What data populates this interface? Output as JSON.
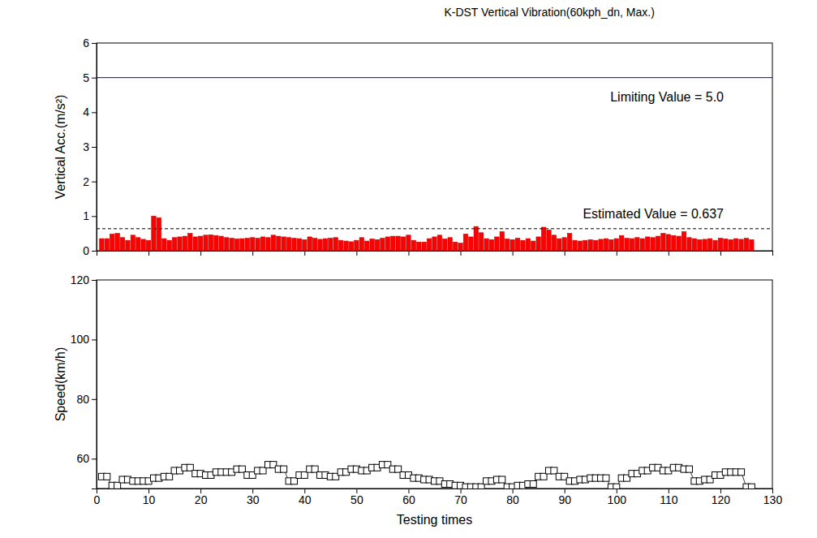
{
  "chart_data": [
    {
      "type": "bar",
      "title": "K-DST Vertical Vibration(60kph_dn, Max.)",
      "ylabel": "Vertical Acc.(m/s²)",
      "x": [
        1,
        2,
        3,
        4,
        5,
        6,
        7,
        8,
        9,
        10,
        11,
        12,
        13,
        14,
        15,
        16,
        17,
        18,
        19,
        20,
        21,
        22,
        23,
        24,
        25,
        26,
        27,
        28,
        29,
        30,
        31,
        32,
        33,
        34,
        35,
        36,
        37,
        38,
        39,
        40,
        41,
        42,
        43,
        44,
        45,
        46,
        47,
        48,
        49,
        50,
        51,
        52,
        53,
        54,
        55,
        56,
        57,
        58,
        59,
        60,
        61,
        62,
        63,
        64,
        65,
        66,
        67,
        68,
        69,
        70,
        71,
        72,
        73,
        74,
        75,
        76,
        77,
        78,
        79,
        80,
        81,
        82,
        83,
        84,
        85,
        86,
        87,
        88,
        89,
        90,
        91,
        92,
        93,
        94,
        95,
        96,
        97,
        98,
        99,
        100,
        101,
        102,
        103,
        104,
        105,
        106,
        107,
        108,
        109,
        110,
        111,
        112,
        113,
        114,
        115,
        116,
        117,
        118,
        119,
        120,
        121,
        122,
        123,
        124,
        125,
        126
      ],
      "values": [
        0.35,
        0.35,
        0.48,
        0.5,
        0.38,
        0.3,
        0.45,
        0.38,
        0.33,
        0.3,
        1.0,
        0.95,
        0.35,
        0.3,
        0.38,
        0.4,
        0.42,
        0.5,
        0.4,
        0.42,
        0.45,
        0.46,
        0.44,
        0.42,
        0.38,
        0.36,
        0.34,
        0.35,
        0.36,
        0.38,
        0.36,
        0.4,
        0.38,
        0.45,
        0.42,
        0.4,
        0.38,
        0.36,
        0.35,
        0.32,
        0.4,
        0.36,
        0.33,
        0.35,
        0.36,
        0.38,
        0.3,
        0.28,
        0.26,
        0.3,
        0.38,
        0.28,
        0.34,
        0.32,
        0.36,
        0.4,
        0.42,
        0.42,
        0.4,
        0.45,
        0.3,
        0.25,
        0.25,
        0.35,
        0.4,
        0.45,
        0.34,
        0.38,
        0.25,
        0.22,
        0.48,
        0.4,
        0.7,
        0.52,
        0.35,
        0.32,
        0.4,
        0.55,
        0.34,
        0.32,
        0.36,
        0.3,
        0.35,
        0.28,
        0.4,
        0.68,
        0.6,
        0.45,
        0.35,
        0.38,
        0.5,
        0.3,
        0.28,
        0.3,
        0.32,
        0.3,
        0.33,
        0.35,
        0.32,
        0.35,
        0.44,
        0.36,
        0.35,
        0.38,
        0.35,
        0.4,
        0.38,
        0.42,
        0.5,
        0.47,
        0.44,
        0.42,
        0.55,
        0.38,
        0.35,
        0.32,
        0.33,
        0.35,
        0.3,
        0.36,
        0.34,
        0.32,
        0.35,
        0.33,
        0.36,
        0.32
      ],
      "color": "#ff0000",
      "xlim": [
        0,
        130
      ],
      "xticks": [
        0,
        10,
        20,
        30,
        40,
        50,
        60,
        70,
        80,
        90,
        100,
        110,
        120,
        130
      ],
      "ylim": [
        0,
        6
      ],
      "yticks": [
        0,
        1,
        2,
        3,
        4,
        5,
        6
      ],
      "tick_labels": "y",
      "reference_lines": [
        {
          "value": 5.0,
          "label": "Limiting Value = 5.0",
          "color": "#0000cc",
          "line_style": "solid"
        },
        {
          "value": 0.637,
          "label": "Estimated Value = 0.637",
          "color": "#000000",
          "line_style": "dashed"
        }
      ]
    },
    {
      "type": "line",
      "xlabel": "Testing times",
      "ylabel": "Speed(km/h)",
      "x": [
        1,
        2,
        3,
        4,
        5,
        6,
        7,
        8,
        9,
        10,
        11,
        12,
        13,
        14,
        15,
        16,
        17,
        18,
        19,
        20,
        21,
        22,
        23,
        24,
        25,
        26,
        27,
        28,
        29,
        30,
        31,
        32,
        33,
        34,
        35,
        36,
        37,
        38,
        39,
        40,
        41,
        42,
        43,
        44,
        45,
        46,
        47,
        48,
        49,
        50,
        51,
        52,
        53,
        54,
        55,
        56,
        57,
        58,
        59,
        60,
        61,
        62,
        63,
        64,
        65,
        66,
        67,
        68,
        69,
        70,
        71,
        72,
        73,
        74,
        75,
        76,
        77,
        78,
        79,
        80,
        81,
        82,
        83,
        84,
        85,
        86,
        87,
        88,
        89,
        90,
        91,
        92,
        93,
        94,
        95,
        96,
        97,
        98,
        99,
        100,
        101,
        102,
        103,
        104,
        105,
        106,
        107,
        108,
        109,
        110,
        111,
        112,
        113,
        114,
        115,
        116,
        117,
        118,
        119,
        120,
        121,
        122,
        123,
        124,
        125,
        126
      ],
      "values": [
        54,
        54,
        51,
        51,
        53,
        53,
        52.5,
        52.5,
        52.5,
        52.5,
        53.5,
        53.5,
        54,
        54,
        56,
        56,
        57,
        57,
        55,
        55,
        54.5,
        54.5,
        55.5,
        55.5,
        55.5,
        55.5,
        56.5,
        56.5,
        54.5,
        54.5,
        56,
        56,
        58,
        58,
        56.5,
        56.5,
        52.5,
        52.5,
        54.5,
        54.5,
        56.5,
        56.5,
        54.5,
        54.5,
        54,
        54,
        55.5,
        55.5,
        56.5,
        56.5,
        56,
        56,
        57,
        57,
        58,
        58,
        56.5,
        56.5,
        54.5,
        54.5,
        53.5,
        53.5,
        53,
        53,
        52.5,
        52.5,
        51.5,
        51.5,
        51,
        51,
        50.5,
        50.5,
        50.5,
        50.5,
        52.5,
        52.5,
        53,
        53,
        50.5,
        50.5,
        51,
        51,
        51.5,
        51.5,
        54,
        54,
        56,
        56,
        54,
        54,
        52.5,
        52.5,
        53,
        53,
        53.5,
        53.5,
        53.5,
        53.5,
        50.5,
        50.5,
        53.5,
        53.5,
        55,
        55,
        56,
        56,
        57,
        57,
        56,
        56,
        57,
        57,
        56.5,
        56.5,
        52.5,
        52.5,
        53,
        53,
        54.5,
        54.5,
        55.5,
        55.5,
        55.5,
        55.5,
        50.5,
        50.5
      ],
      "color": "#000000",
      "marker": "square",
      "line_style": "solid",
      "xlim": [
        0,
        130
      ],
      "xticks": [
        0,
        10,
        20,
        30,
        40,
        50,
        60,
        70,
        80,
        90,
        100,
        110,
        120,
        130
      ],
      "ylim": [
        50,
        120
      ],
      "yticks": [
        60,
        80,
        100,
        120
      ]
    }
  ]
}
